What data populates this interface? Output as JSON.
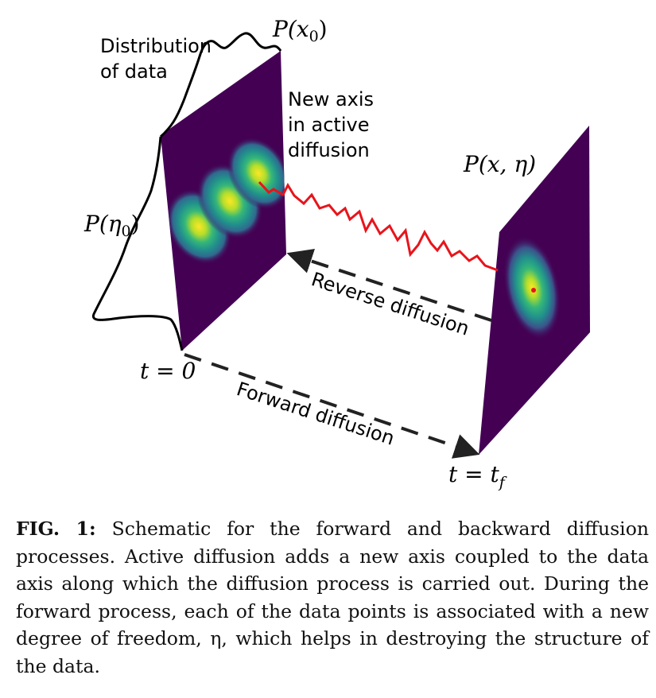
{
  "figure": {
    "label_distribution_line1": "Distribution",
    "label_distribution_line2": "of data",
    "label_p_x0": "P(x",
    "label_p_x0_sub": "0",
    "label_p_x0_close": ")",
    "label_p_eta0": "P(η",
    "label_p_eta0_sub": "0",
    "label_p_eta0_close": ")",
    "label_new_axis_line1": "New axis",
    "label_new_axis_line2": "in active",
    "label_new_axis_line3": "diffusion",
    "label_p_x_eta": "P(x, η)",
    "label_reverse": "Reverse diffusion",
    "label_forward": "Forward diffusion",
    "label_t0": "t = 0",
    "label_tf_main": "t = t",
    "label_tf_sub": "f",
    "colors": {
      "heatmap_bg": "#440154",
      "heatmap_mid": "#21918c",
      "heatmap_hot": "#fde725",
      "trajectory": "#e8141b",
      "arrow": "#222222"
    }
  },
  "caption": {
    "label": "FIG. 1:",
    "text": " Schematic for the forward and backward diffusion processes. Active diffusion adds a new axis coupled to the data axis along which the diffusion process is carried out. During the forward process, each of the data points is associated with a new degree of freedom, η, which helps in destroying the structure of the data."
  }
}
